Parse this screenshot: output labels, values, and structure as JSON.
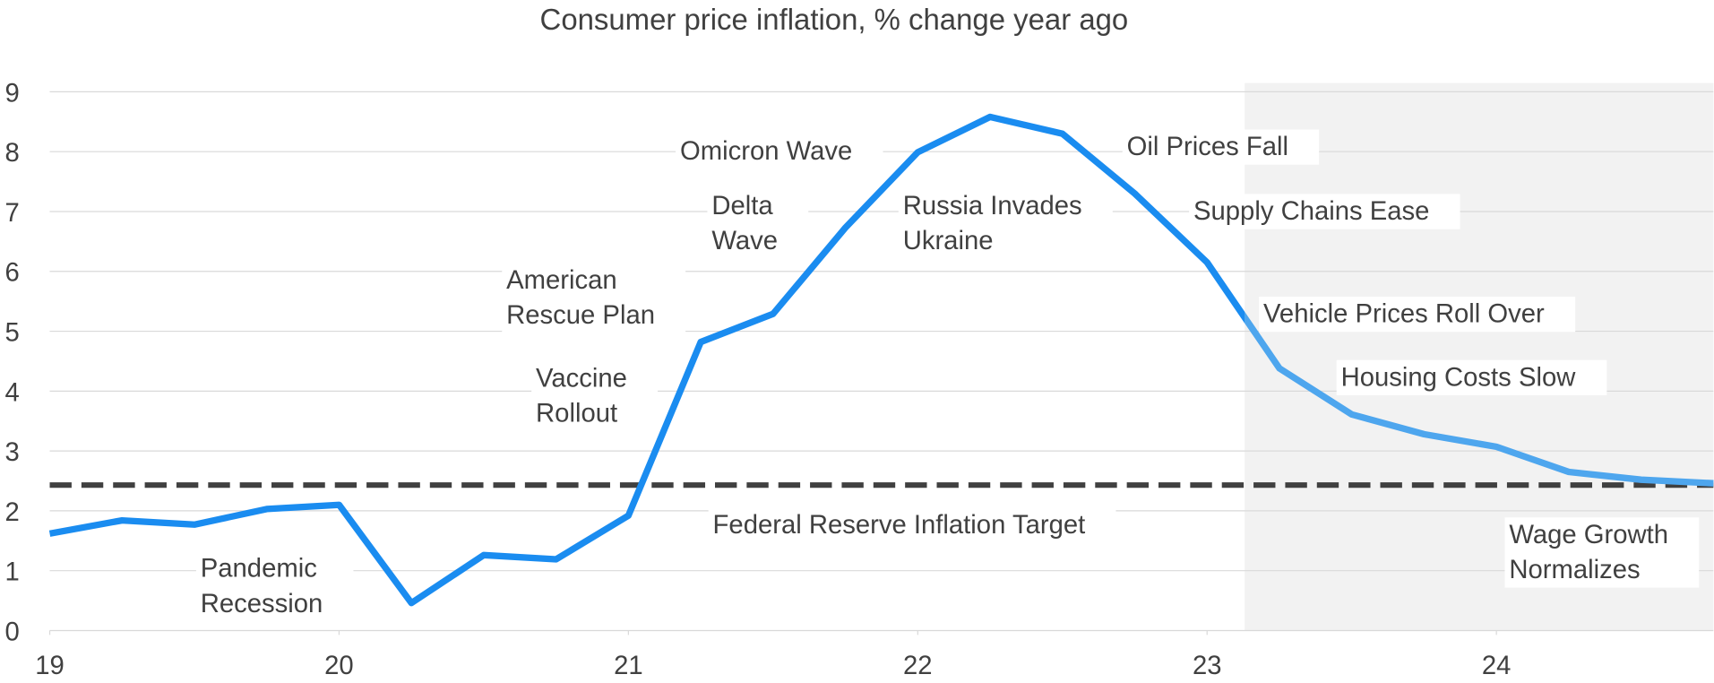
{
  "chart_data": {
    "type": "line",
    "title": "Consumer price inflation, % change year ago",
    "x": [
      19,
      19.25,
      19.5,
      19.75,
      20,
      20.25,
      20.5,
      20.75,
      21,
      21.25,
      21.5,
      21.75,
      22,
      22.25,
      22.5,
      22.75,
      23,
      23.25,
      23.5,
      23.75,
      24,
      24.25,
      24.5,
      24.75
    ],
    "series": [
      {
        "color": "#1a8cf0",
        "forecast_color": "#4ea6ee",
        "values": [
          1.62,
          1.84,
          1.77,
          2.03,
          2.1,
          0.46,
          1.26,
          1.19,
          1.92,
          4.82,
          5.29,
          6.73,
          7.99,
          8.58,
          8.3,
          7.3,
          6.15,
          4.38,
          3.61,
          3.28,
          3.07,
          2.65,
          2.52,
          2.46
        ]
      }
    ],
    "target": {
      "value": 2.43,
      "label": "Federal Reserve Inflation Target",
      "color": "#404040"
    },
    "shaded_region": {
      "x": [
        23.13,
        24.75
      ],
      "color": "#f2f2f2"
    },
    "xlim": [
      19,
      24.75
    ],
    "xticks": [
      19,
      20,
      21,
      22,
      23,
      24
    ],
    "ylim": [
      0,
      9
    ],
    "yticks": [
      0,
      1,
      2,
      3,
      4,
      5,
      6,
      7,
      8,
      9
    ],
    "grid": true,
    "annotations": [
      {
        "lines": [
          "Pandemic",
          "Recession"
        ]
      },
      {
        "lines": [
          "Vaccine",
          "Rollout"
        ]
      },
      {
        "lines": [
          "American",
          "Rescue Plan"
        ]
      },
      {
        "lines": [
          "Delta",
          "Wave"
        ]
      },
      {
        "lines": [
          "Omicron Wave"
        ]
      },
      {
        "lines": [
          "Russia Invades",
          "Ukraine"
        ]
      },
      {
        "lines": [
          "Oil Prices Fall"
        ]
      },
      {
        "lines": [
          "Supply Chains Ease"
        ]
      },
      {
        "lines": [
          "Vehicle Prices Roll Over"
        ]
      },
      {
        "lines": [
          "Housing Costs Slow"
        ]
      },
      {
        "lines": [
          "Wage Growth",
          "Normalizes"
        ]
      }
    ]
  }
}
